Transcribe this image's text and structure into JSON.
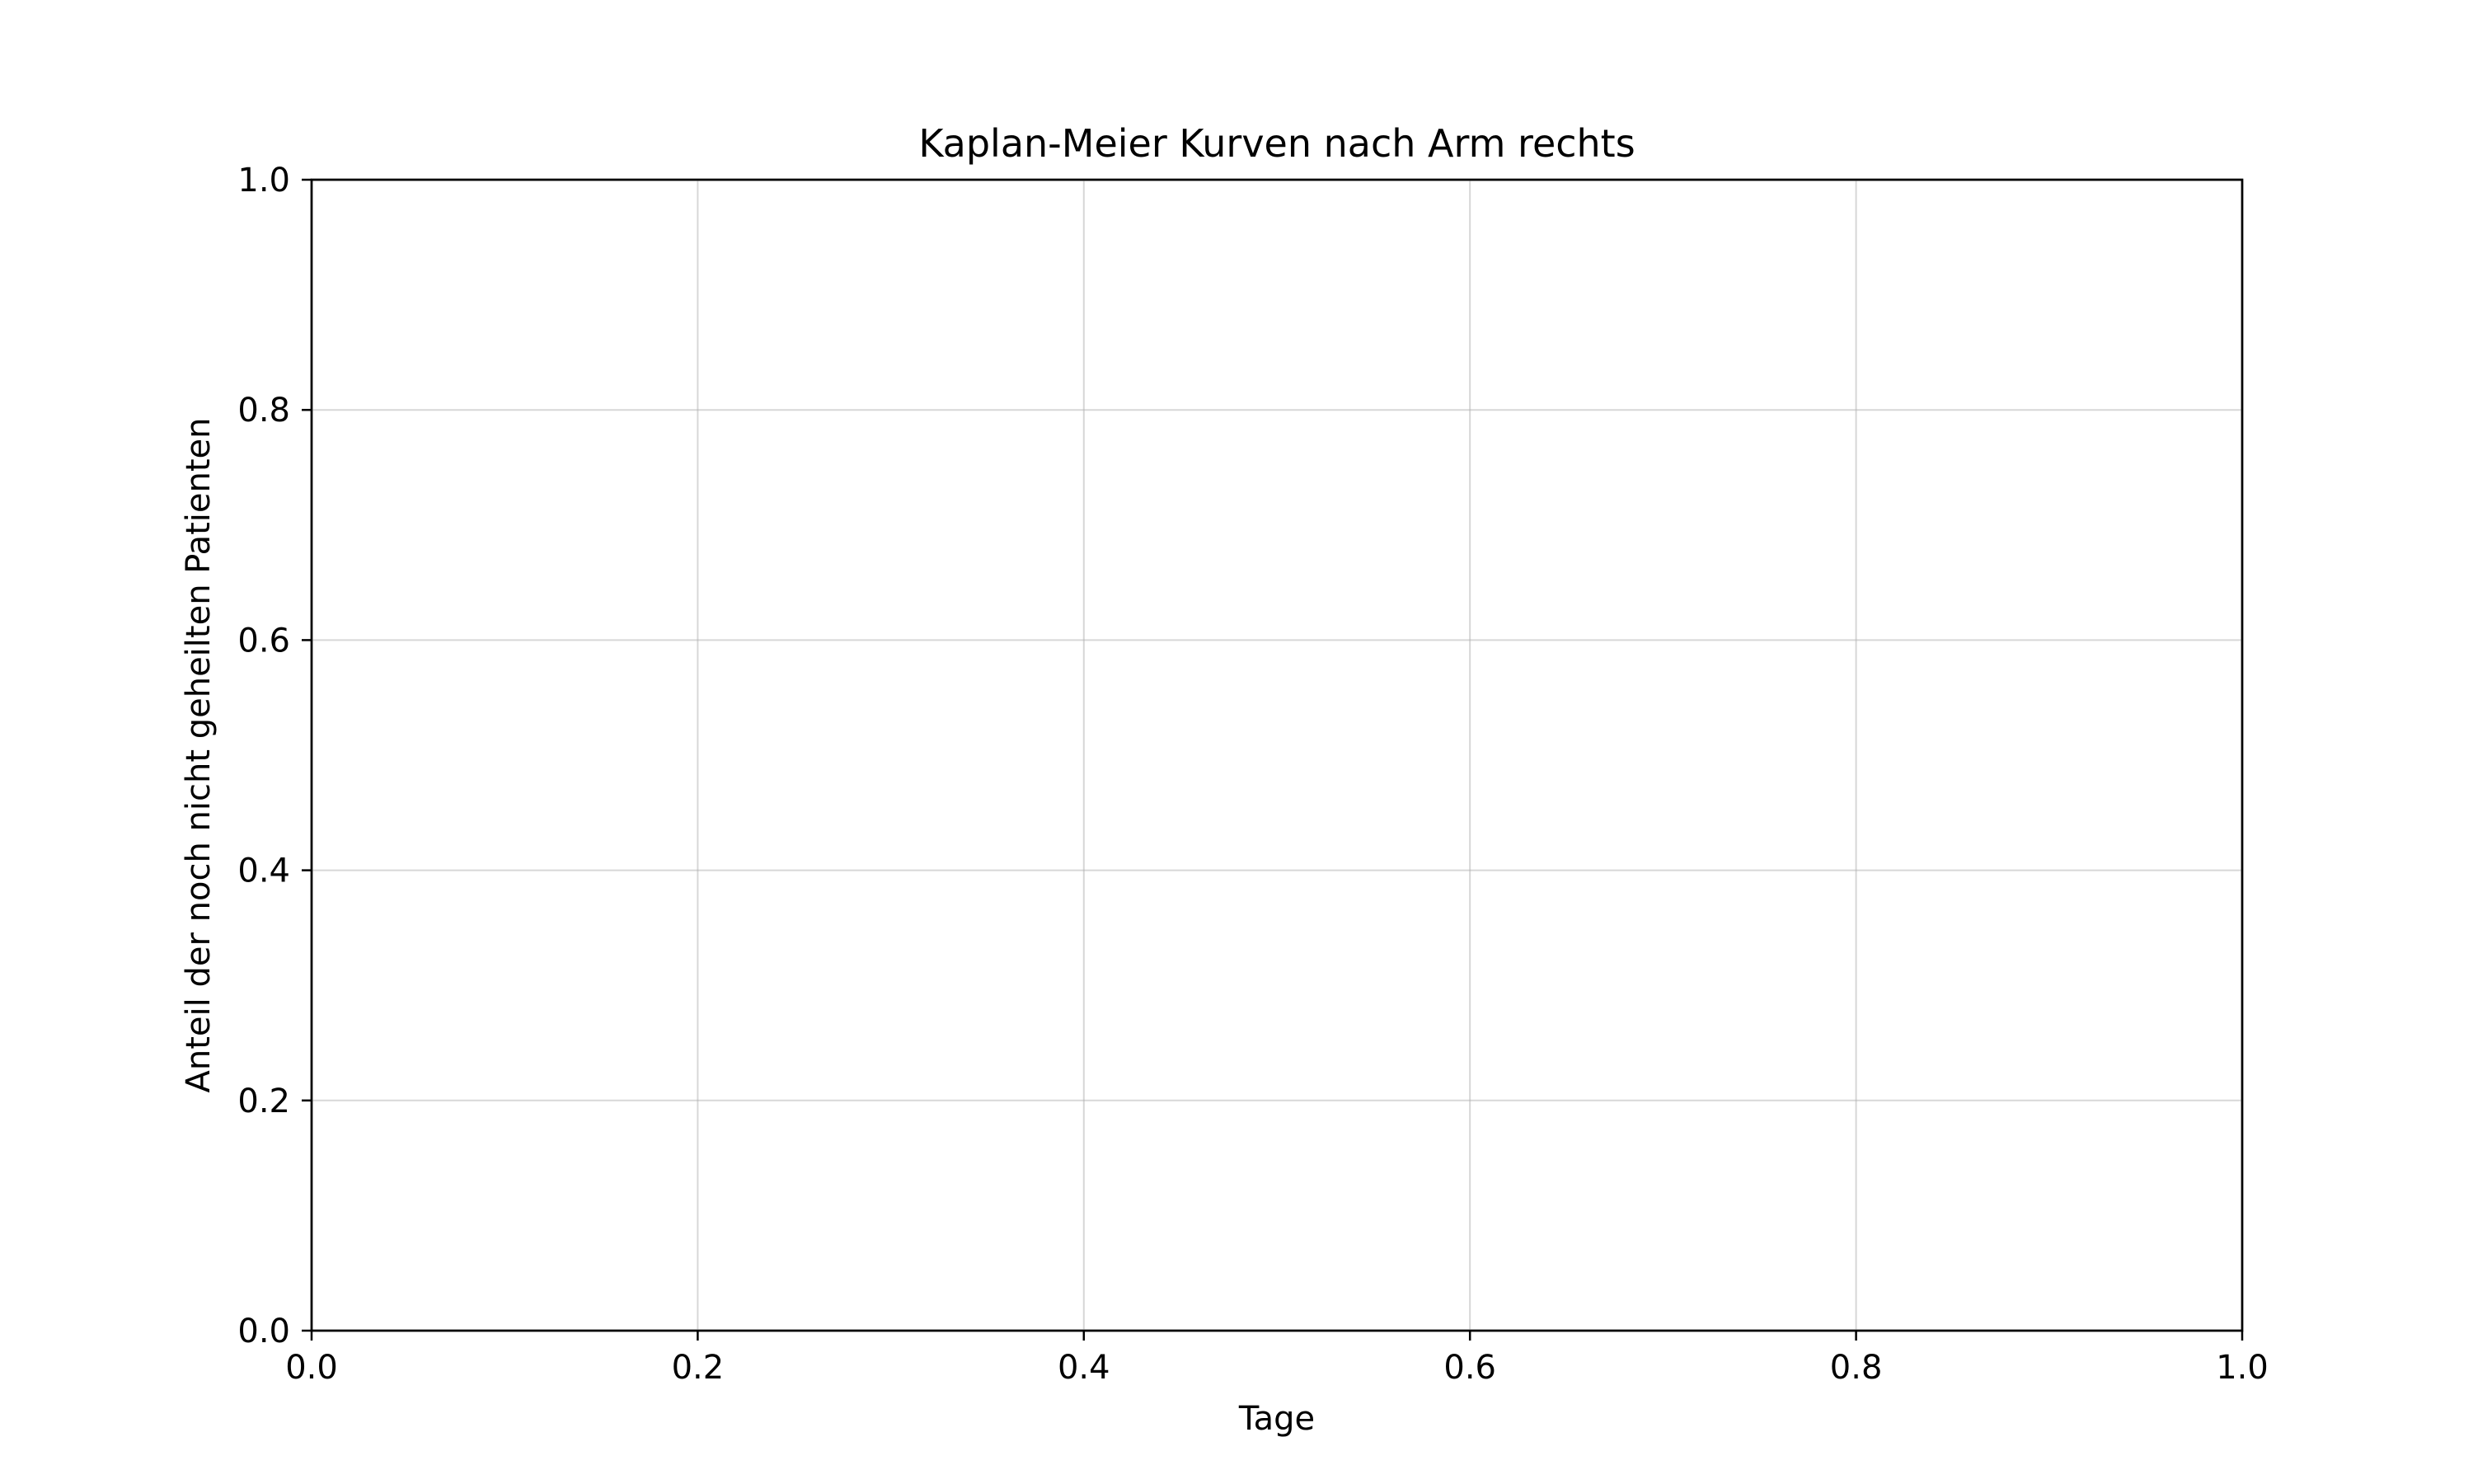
{
  "chart_data": {
    "type": "line",
    "title": "Kaplan-Meier Kurven nach Arm rechts",
    "xlabel": "Tage",
    "ylabel": "Anteil der noch nicht geheilten Patienten",
    "xlim": [
      0.0,
      1.0
    ],
    "ylim": [
      0.0,
      1.0
    ],
    "xticks": [
      "0.0",
      "0.2",
      "0.4",
      "0.6",
      "0.8",
      "1.0"
    ],
    "yticks": [
      "0.0",
      "0.2",
      "0.4",
      "0.6",
      "0.8",
      "1.0"
    ],
    "grid": true,
    "series": []
  }
}
